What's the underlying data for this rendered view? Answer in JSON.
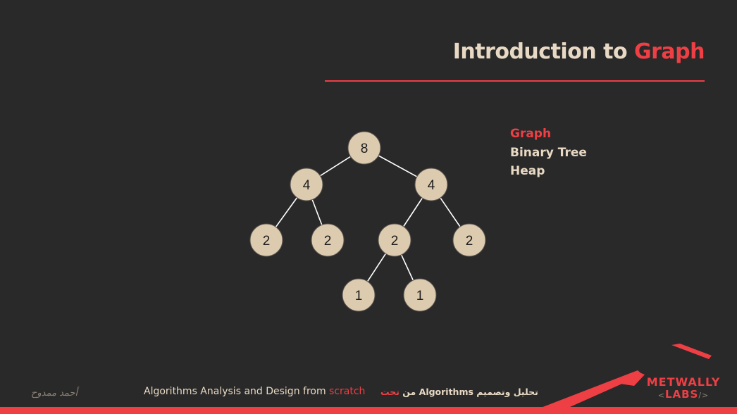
{
  "slide": {
    "title_prefix": "Introduction to ",
    "title_accent": "Graph"
  },
  "topics": [
    "Graph",
    "Binary Tree",
    "Heap"
  ],
  "tree": {
    "nodes": [
      "8",
      "4",
      "4",
      "2",
      "2",
      "2",
      "2",
      "1",
      "1"
    ],
    "edges": [
      [
        0,
        1
      ],
      [
        0,
        2
      ],
      [
        1,
        3
      ],
      [
        1,
        4
      ],
      [
        2,
        5
      ],
      [
        2,
        6
      ],
      [
        5,
        7
      ],
      [
        5,
        8
      ]
    ]
  },
  "footer": {
    "en_text": "Algorithms Analysis and Design from ",
    "en_accent": "scratch",
    "ar_text": "تحليل وتصميم Algorithms من ",
    "ar_accent": "تحت",
    "signature": "أحمد ممدوح"
  },
  "logo": {
    "line1": "METWALLY",
    "line2": "LABS",
    "bracket_left": "<",
    "bracket_right": "/>"
  },
  "colors": {
    "background": "#2a2929",
    "accent": "#ee3f45",
    "text": "#e8d9c4",
    "node_fill": "#ddcbb0"
  }
}
